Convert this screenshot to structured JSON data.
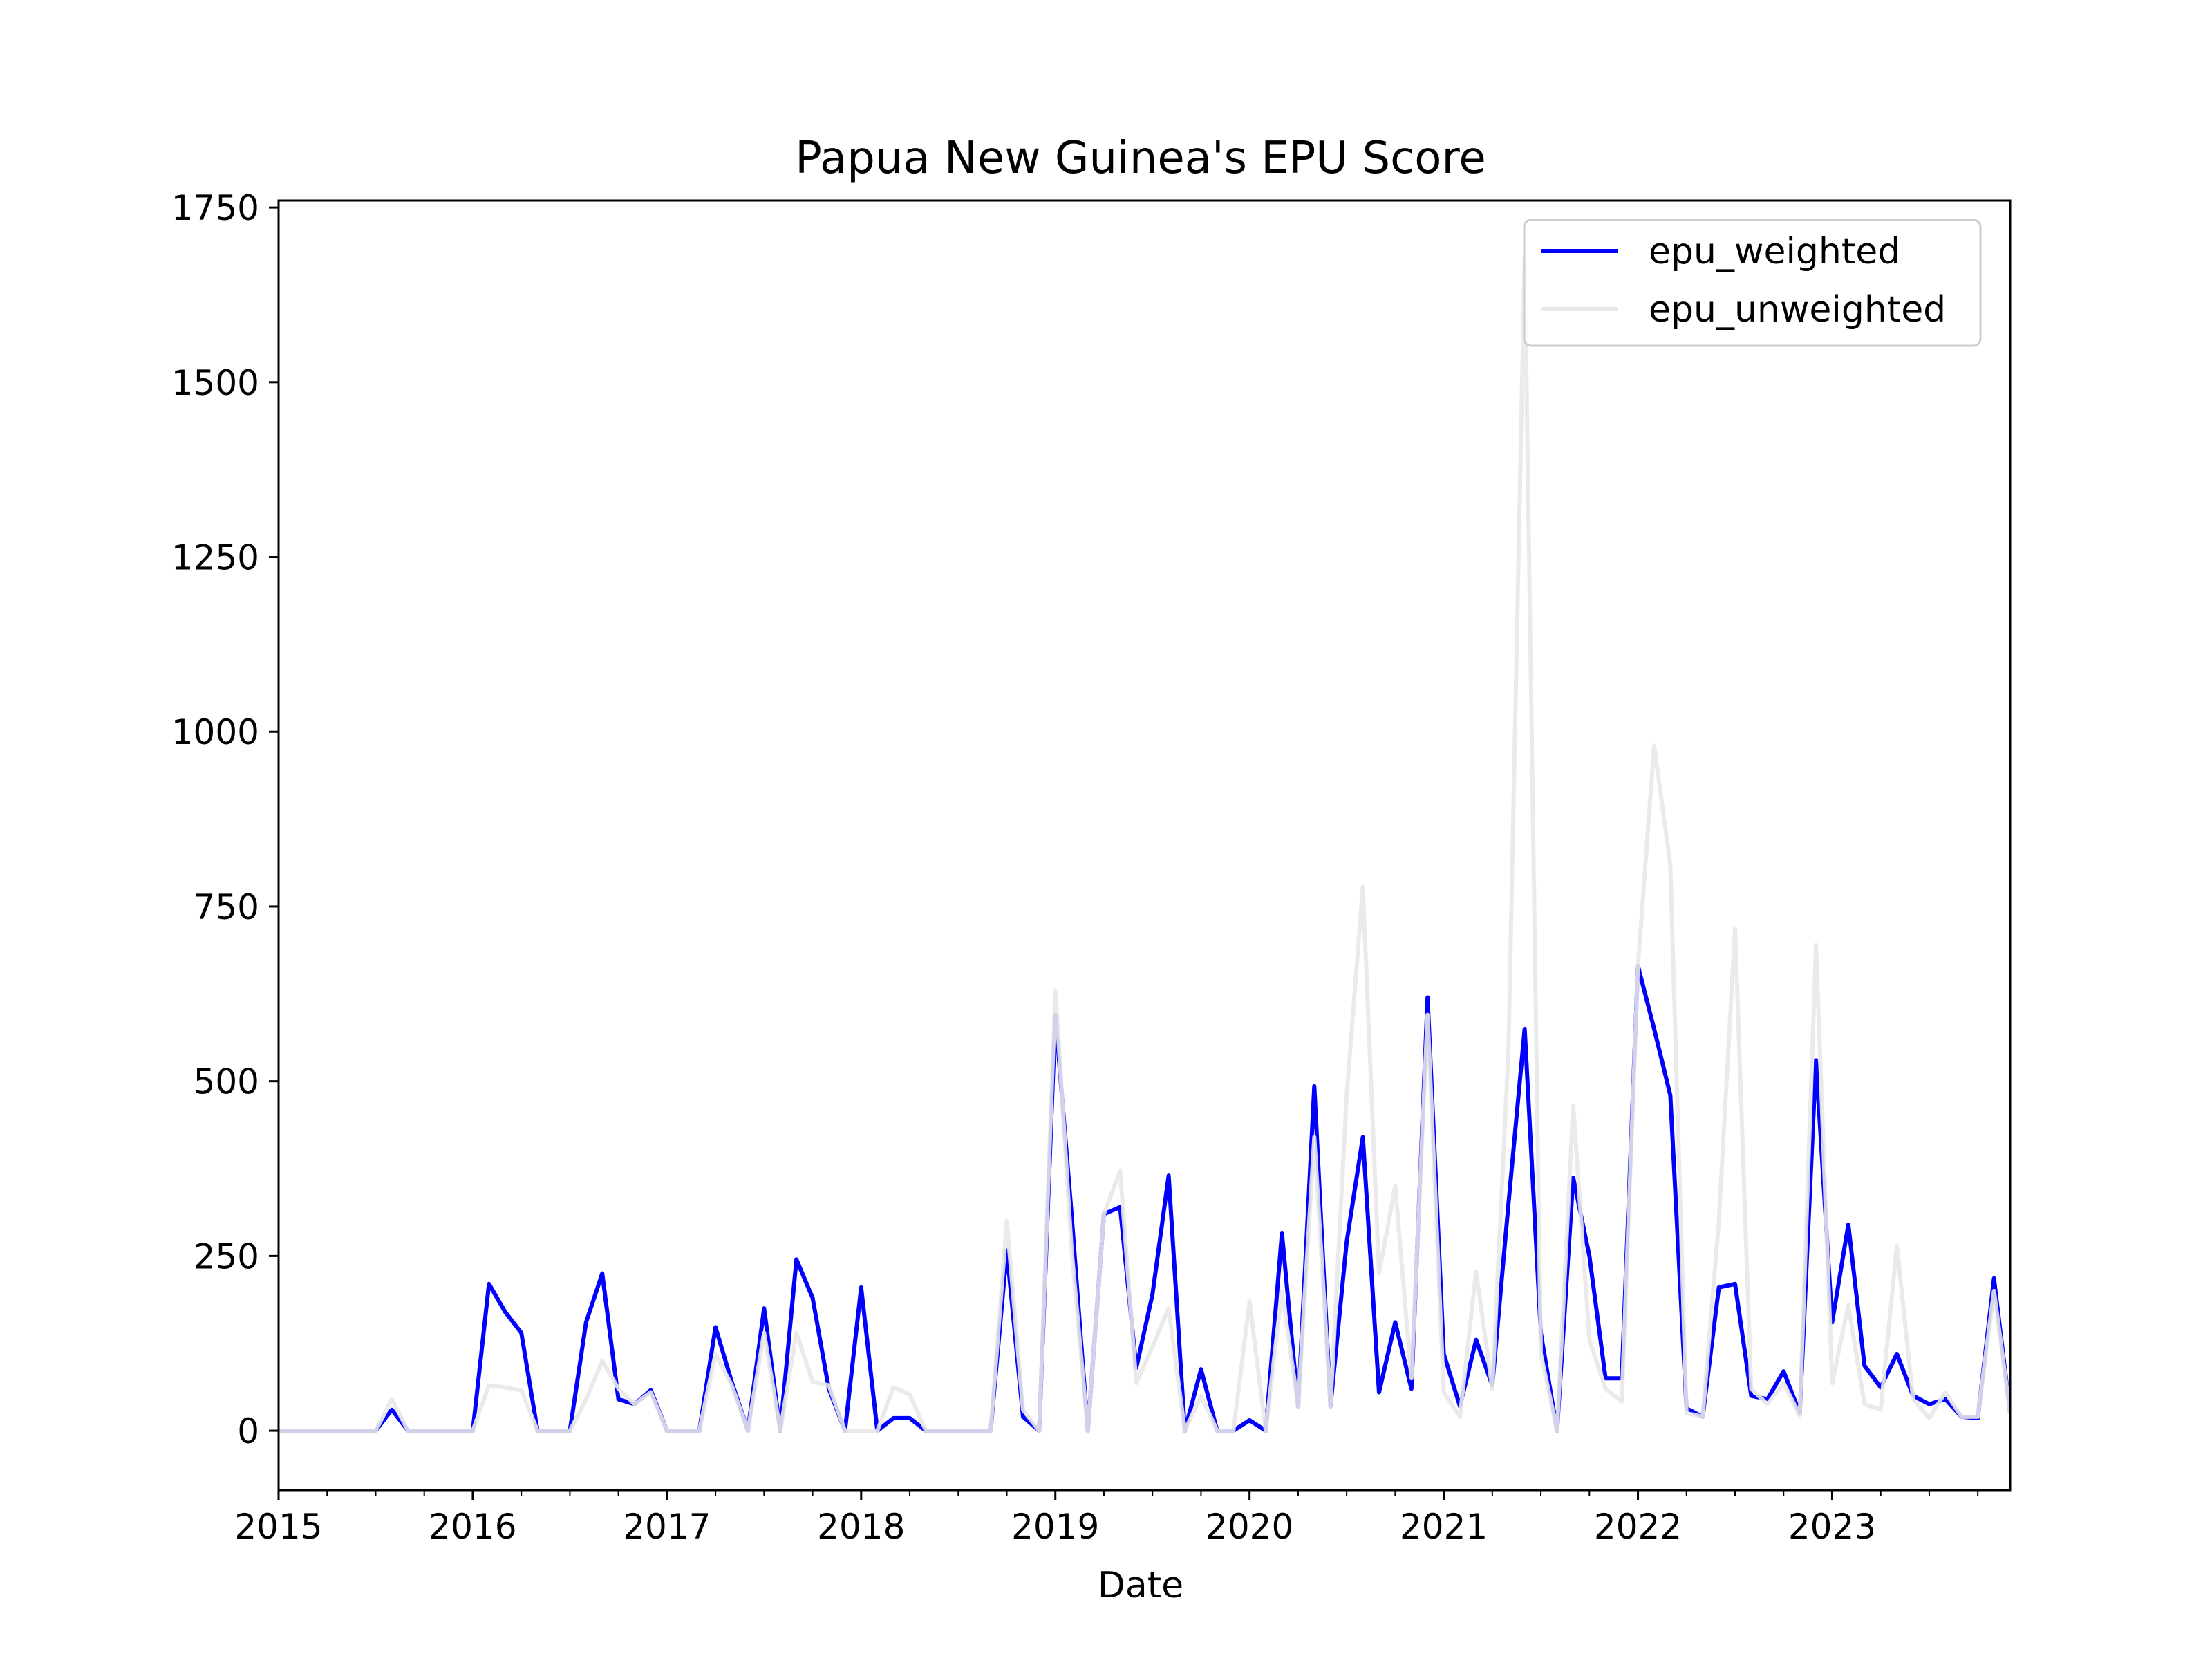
{
  "chart_data": {
    "type": "line",
    "title": "Papua New Guinea's EPU Score",
    "xlabel": "Date",
    "ylabel": "",
    "xlim": [
      "2015-01",
      "2023-12"
    ],
    "ylim": [
      -85,
      1760
    ],
    "x_ticks": [
      "2015",
      "2016",
      "2017",
      "2018",
      "2019",
      "2020",
      "2021",
      "2022",
      "2023"
    ],
    "y_ticks": [
      0,
      250,
      500,
      750,
      1000,
      1250,
      1500,
      1750
    ],
    "legend_position": "top-right",
    "grid": false,
    "x": [
      "2015-01",
      "2015-02",
      "2015-03",
      "2015-04",
      "2015-05",
      "2015-06",
      "2015-07",
      "2015-08",
      "2015-09",
      "2015-10",
      "2015-11",
      "2015-12",
      "2016-01",
      "2016-02",
      "2016-03",
      "2016-04",
      "2016-05",
      "2016-06",
      "2016-07",
      "2016-08",
      "2016-09",
      "2016-10",
      "2016-11",
      "2016-12",
      "2017-01",
      "2017-02",
      "2017-03",
      "2017-04",
      "2017-05",
      "2017-06",
      "2017-07",
      "2017-08",
      "2017-09",
      "2017-10",
      "2017-11",
      "2017-12",
      "2018-01",
      "2018-02",
      "2018-03",
      "2018-04",
      "2018-05",
      "2018-06",
      "2018-07",
      "2018-08",
      "2018-09",
      "2018-10",
      "2018-11",
      "2018-12",
      "2019-01",
      "2019-02",
      "2019-03",
      "2019-04",
      "2019-05",
      "2019-06",
      "2019-07",
      "2019-08",
      "2019-09",
      "2019-10",
      "2019-11",
      "2019-12",
      "2020-01",
      "2020-02",
      "2020-03",
      "2020-04",
      "2020-05",
      "2020-06",
      "2020-07",
      "2020-08",
      "2020-09",
      "2020-10",
      "2020-11",
      "2020-12",
      "2021-01",
      "2021-02",
      "2021-03",
      "2021-04",
      "2021-05",
      "2021-06",
      "2021-07",
      "2021-08",
      "2021-09",
      "2021-10",
      "2021-11",
      "2021-12",
      "2022-01",
      "2022-02",
      "2022-03",
      "2022-04",
      "2022-05",
      "2022-06",
      "2022-07",
      "2022-08",
      "2022-09",
      "2022-10",
      "2022-11",
      "2022-12",
      "2023-01",
      "2023-02",
      "2023-03",
      "2023-04",
      "2023-05",
      "2023-06",
      "2023-07",
      "2023-08",
      "2023-09",
      "2023-10",
      "2023-11",
      "2023-12"
    ],
    "series": [
      {
        "name": "epu_weighted",
        "color": "#0000ff",
        "values": [
          0,
          0,
          0,
          0,
          0,
          0,
          0,
          30,
          0,
          0,
          0,
          0,
          0,
          210,
          170,
          140,
          0,
          0,
          0,
          155,
          225,
          45,
          38,
          58,
          0,
          0,
          0,
          148,
          70,
          0,
          175,
          0,
          245,
          190,
          60,
          0,
          205,
          0,
          18,
          18,
          0,
          0,
          0,
          0,
          0,
          258,
          20,
          0,
          595,
          310,
          0,
          310,
          320,
          90,
          195,
          365,
          0,
          88,
          0,
          0,
          15,
          0,
          283,
          35,
          493,
          35,
          270,
          420,
          55,
          155,
          60,
          620,
          110,
          35,
          130,
          65,
          325,
          575,
          140,
          0,
          362,
          250,
          75,
          75,
          665,
          575,
          480,
          32,
          20,
          205,
          210,
          50,
          45,
          85,
          25,
          530,
          155,
          295,
          93,
          62,
          110,
          50,
          38,
          45,
          20,
          18,
          218,
          25
        ]
      },
      {
        "name": "epu_unweighted",
        "color": "#e8e8e8",
        "values": [
          0,
          0,
          0,
          0,
          0,
          0,
          0,
          45,
          0,
          0,
          0,
          0,
          0,
          65,
          62,
          58,
          0,
          0,
          0,
          45,
          100,
          60,
          38,
          55,
          0,
          0,
          0,
          110,
          65,
          0,
          140,
          0,
          140,
          70,
          65,
          0,
          0,
          0,
          62,
          52,
          0,
          0,
          0,
          0,
          0,
          300,
          30,
          0,
          630,
          260,
          0,
          310,
          372,
          68,
          120,
          175,
          0,
          50,
          0,
          0,
          185,
          0,
          200,
          35,
          420,
          35,
          480,
          778,
          225,
          350,
          75,
          595,
          55,
          20,
          228,
          60,
          545,
          1680,
          110,
          0,
          465,
          130,
          60,
          42,
          665,
          980,
          810,
          25,
          20,
          300,
          718,
          60,
          38,
          68,
          22,
          695,
          68,
          180,
          38,
          30,
          265,
          45,
          18,
          55,
          20,
          20,
          200,
          25
        ]
      }
    ]
  }
}
